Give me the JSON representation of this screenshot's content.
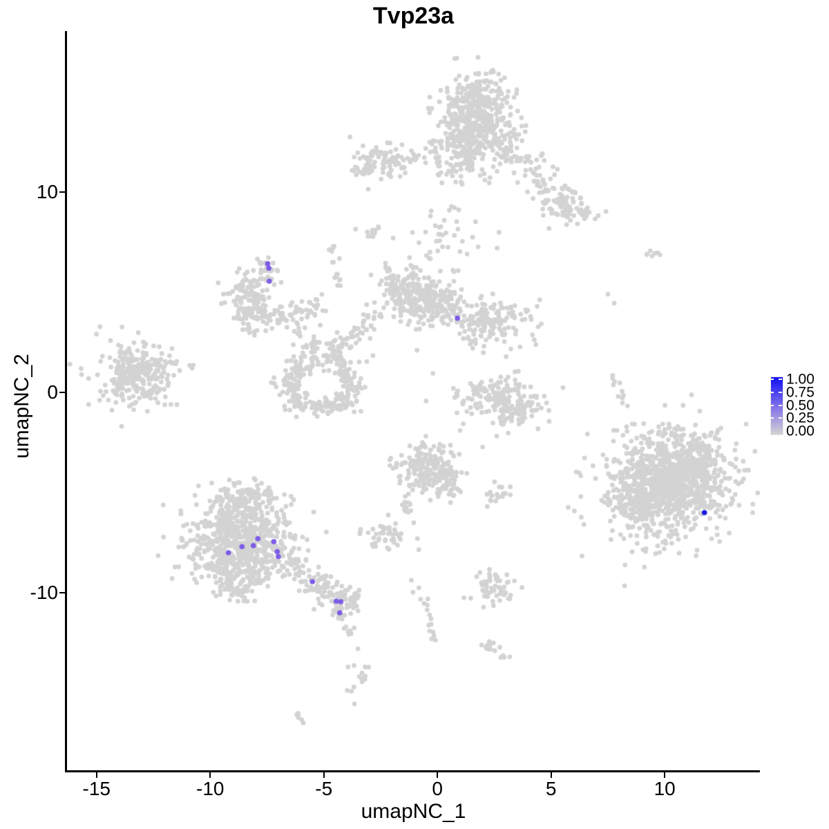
{
  "title": "Tvp23a",
  "axes": {
    "x": {
      "label": "umapNC_1",
      "ticks": [
        "-15",
        "-10",
        "-5",
        "0",
        "5",
        "10"
      ],
      "tick_values": [
        -15,
        -10,
        -5,
        0,
        5,
        10
      ]
    },
    "y": {
      "label": "umapNC_2",
      "ticks": [
        "10",
        "0",
        "-10"
      ],
      "tick_values": [
        10,
        0,
        -10
      ]
    }
  },
  "legend": {
    "labels": [
      "1.00",
      "0.75",
      "0.50",
      "0.25",
      "0.00"
    ],
    "label_values": [
      1.0,
      0.75,
      0.5,
      0.25,
      0.0
    ],
    "tick_values": [
      1.0,
      0.75,
      0.5,
      0.25
    ],
    "color_high": "#1010f5",
    "color_mid": "#8878e8",
    "color_low": "#d3d3d3"
  },
  "chart_data": {
    "type": "scatter",
    "title": "Tvp23a",
    "xlabel": "umapNC_1",
    "ylabel": "umapNC_2",
    "xlim": [
      -16.3,
      14.19
    ],
    "ylim": [
      -18.86,
      18.03
    ],
    "grid": false,
    "point_color": "#d3d3d3",
    "point_radius_px": 3.4,
    "expressing_point_radius_px": 3.8,
    "background_clusters": [
      {
        "t": "b",
        "x": 1.75,
        "y": 14.1,
        "sx": 0.75,
        "sy": 0.9,
        "n": 360
      },
      {
        "t": "b",
        "x": 1.55,
        "y": 12.5,
        "sx": 0.9,
        "sy": 0.6,
        "n": 170
      },
      {
        "t": "b",
        "x": 1.1,
        "y": 11.3,
        "sx": 0.55,
        "sy": 0.5,
        "n": 60
      },
      {
        "t": "l",
        "x1": 2.6,
        "y1": 12.9,
        "x2": 5.8,
        "y2": 9.1,
        "w": 0.5,
        "n": 115
      },
      {
        "t": "b",
        "x": 5.65,
        "y": 9.35,
        "sx": 0.4,
        "sy": 0.35,
        "n": 40
      },
      {
        "t": "l",
        "x1": 6.0,
        "y1": 9.2,
        "x2": 6.95,
        "y2": 8.7,
        "w": 0.25,
        "n": 18
      },
      {
        "t": "b",
        "x": 0.9,
        "y": 7.9,
        "sx": 0.95,
        "sy": 0.85,
        "n": 28
      },
      {
        "t": "l",
        "x1": 0.05,
        "y1": 8.3,
        "x2": -0.3,
        "y2": 6.6,
        "w": 0.15,
        "n": 12
      },
      {
        "t": "b",
        "x": -2.4,
        "y": 11.6,
        "sx": 0.62,
        "sy": 0.42,
        "n": 85
      },
      {
        "t": "b",
        "x": -3.3,
        "y": 11.15,
        "sx": 0.28,
        "sy": 0.28,
        "n": 15
      },
      {
        "t": "l",
        "x1": -1.35,
        "y1": 11.7,
        "x2": 0.15,
        "y2": 11.4,
        "w": 0.12,
        "n": 12
      },
      {
        "t": "l",
        "x1": -3.15,
        "y1": 7.5,
        "x2": -2.6,
        "y2": 8.3,
        "w": 0.1,
        "n": 10
      },
      {
        "t": "b",
        "x": -7.45,
        "y": 6.1,
        "sx": 0.2,
        "sy": 0.33,
        "n": 22
      },
      {
        "t": "b",
        "x": -8.35,
        "y": 4.9,
        "sx": 0.55,
        "sy": 0.72,
        "n": 125
      },
      {
        "t": "l",
        "x1": -8.35,
        "y1": 3.6,
        "x2": -6.1,
        "y2": 3.85,
        "w": 0.33,
        "n": 65
      },
      {
        "t": "l",
        "x1": -6.1,
        "y1": 3.95,
        "x2": -5.1,
        "y2": 4.55,
        "w": 0.28,
        "n": 22
      },
      {
        "t": "l",
        "x1": -4.68,
        "y1": 7.6,
        "x2": -4.35,
        "y2": 5.15,
        "w": 0.1,
        "n": 16
      },
      {
        "t": "b",
        "x": -1.25,
        "y": 4.95,
        "sx": 0.72,
        "sy": 0.68,
        "n": 195
      },
      {
        "t": "b",
        "x": -0.05,
        "y": 4.35,
        "sx": 0.6,
        "sy": 0.55,
        "n": 115
      },
      {
        "t": "b",
        "x": 2.0,
        "y": 3.6,
        "sx": 0.78,
        "sy": 0.58,
        "n": 145
      },
      {
        "t": "l",
        "x1": -2.2,
        "y1": 6.3,
        "x2": -2.0,
        "y2": 5.0,
        "w": 0.12,
        "n": 13
      },
      {
        "t": "b",
        "x": 3.9,
        "y": 3.0,
        "sx": 0.5,
        "sy": 0.75,
        "n": 22
      },
      {
        "t": "l",
        "x1": -6.4,
        "y1": 3.1,
        "x2": -4.4,
        "y2": 1.8,
        "w": 0.25,
        "n": 28
      },
      {
        "t": "l",
        "x1": -5.6,
        "y1": 1.2,
        "x2": -3.4,
        "y2": 3.1,
        "w": 0.25,
        "n": 28
      },
      {
        "t": "l",
        "x1": -3.9,
        "y1": 2.6,
        "x2": -2.6,
        "y2": 3.9,
        "w": 0.2,
        "n": 18
      },
      {
        "t": "b",
        "x": -4.6,
        "y": 2.2,
        "sx": 0.9,
        "sy": 0.7,
        "n": 22
      },
      {
        "t": "b",
        "x": -13.3,
        "y": 0.9,
        "sx": 0.72,
        "sy": 0.68,
        "n": 225
      },
      {
        "t": "b",
        "x": -13.2,
        "y": 0.95,
        "sx": 1.1,
        "sy": 1.0,
        "n": 48
      },
      {
        "t": "l",
        "x1": -12.2,
        "y1": 1.2,
        "x2": -10.95,
        "y2": 1.4,
        "w": 0.28,
        "n": 13
      },
      {
        "t": "a",
        "x": -5.15,
        "y": 0.45,
        "rx": 1.42,
        "ry": 1.18,
        "a1": 100,
        "a2": 430,
        "w": 0.26,
        "n": 185
      },
      {
        "t": "b",
        "x": -5.0,
        "y": -0.62,
        "sx": 0.8,
        "sy": 0.3,
        "n": 42
      },
      {
        "t": "b",
        "x": -6.3,
        "y": 0.3,
        "sx": 0.3,
        "sy": 0.6,
        "n": 26
      },
      {
        "t": "b",
        "x": -5.3,
        "y": 2.0,
        "sx": 0.7,
        "sy": 0.3,
        "n": 9
      },
      {
        "t": "b",
        "x": 2.6,
        "y": -0.3,
        "sx": 0.8,
        "sy": 0.55,
        "n": 115
      },
      {
        "t": "b",
        "x": 3.6,
        "y": -0.95,
        "sx": 0.6,
        "sy": 0.4,
        "n": 55
      },
      {
        "t": "b",
        "x": 2.9,
        "y": -0.5,
        "sx": 1.25,
        "sy": 0.85,
        "n": 38
      },
      {
        "t": "l",
        "x1": 7.7,
        "y1": 1.05,
        "x2": 8.25,
        "y2": -0.75,
        "w": 0.13,
        "n": 11
      },
      {
        "t": "l",
        "x1": 9.25,
        "y1": 6.85,
        "x2": 9.8,
        "y2": 6.78,
        "w": 0.09,
        "n": 7
      },
      {
        "t": "b",
        "x": -0.3,
        "y": -3.8,
        "sx": 0.68,
        "sy": 0.62,
        "n": 185
      },
      {
        "t": "b",
        "x": 0.35,
        "y": -4.6,
        "sx": 0.42,
        "sy": 0.42,
        "n": 40
      },
      {
        "t": "l",
        "x1": -1.5,
        "y1": -5.2,
        "x2": -1.05,
        "y2": -6.45,
        "w": 0.12,
        "n": 13
      },
      {
        "t": "l",
        "x1": -1.0,
        "y1": -9.4,
        "x2": -0.35,
        "y2": -11.2,
        "w": 0.12,
        "n": 10
      },
      {
        "t": "l",
        "x1": -0.3,
        "y1": -11.4,
        "x2": -0.08,
        "y2": -12.45,
        "w": 0.1,
        "n": 7
      },
      {
        "t": "b",
        "x": 2.15,
        "y": -12.6,
        "sx": 0.22,
        "sy": 0.2,
        "n": 8
      },
      {
        "t": "l",
        "x1": 2.3,
        "y1": -12.75,
        "x2": 2.9,
        "y2": -13.3,
        "w": 0.13,
        "n": 8
      },
      {
        "t": "b",
        "x": -2.4,
        "y": -7.05,
        "sx": 0.55,
        "sy": 0.42,
        "n": 42
      },
      {
        "t": "b",
        "x": 2.85,
        "y": -5.1,
        "sx": 0.32,
        "sy": 0.3,
        "n": 22
      },
      {
        "t": "b",
        "x": 2.5,
        "y": -9.85,
        "sx": 0.58,
        "sy": 0.32,
        "n": 52
      },
      {
        "t": "l",
        "x1": 1.9,
        "y1": -9.0,
        "x2": 3.05,
        "y2": -9.25,
        "w": 0.18,
        "n": 10
      },
      {
        "t": "b",
        "x": -8.55,
        "y": -5.3,
        "sx": 0.72,
        "sy": 0.45,
        "n": 105
      },
      {
        "t": "b",
        "x": -8.6,
        "y": -6.3,
        "sx": 0.95,
        "sy": 0.5,
        "n": 165
      },
      {
        "t": "b",
        "x": -8.7,
        "y": -7.3,
        "sx": 1.15,
        "sy": 0.55,
        "n": 225
      },
      {
        "t": "b",
        "x": -8.8,
        "y": -8.3,
        "sx": 1.05,
        "sy": 0.5,
        "n": 185
      },
      {
        "t": "b",
        "x": -8.85,
        "y": -9.2,
        "sx": 0.75,
        "sy": 0.4,
        "n": 85
      },
      {
        "t": "b",
        "x": -8.9,
        "y": -9.95,
        "sx": 0.5,
        "sy": 0.3,
        "n": 28
      },
      {
        "t": "b",
        "x": -8.6,
        "y": -7.3,
        "sx": 1.5,
        "sy": 1.6,
        "n": 55
      },
      {
        "t": "l",
        "x1": -6.9,
        "y1": -8.2,
        "x2": -4.6,
        "y2": -10.1,
        "w": 0.4,
        "n": 95
      },
      {
        "t": "b",
        "x": -4.2,
        "y": -10.35,
        "sx": 0.5,
        "sy": 0.4,
        "n": 58
      },
      {
        "t": "l",
        "x1": -4.35,
        "y1": -10.9,
        "x2": -4.2,
        "y2": -11.3,
        "w": 0.1,
        "n": 8
      },
      {
        "t": "l",
        "x1": -3.95,
        "y1": -11.5,
        "x2": -3.75,
        "y2": -13.1,
        "w": 0.1,
        "n": 10
      },
      {
        "t": "b",
        "x": -3.55,
        "y": -14.3,
        "sx": 0.28,
        "sy": 0.5,
        "n": 14
      },
      {
        "t": "l",
        "x1": -6.15,
        "y1": -16.05,
        "x2": -5.8,
        "y2": -16.5,
        "w": 0.08,
        "n": 7
      },
      {
        "t": "b",
        "x": 10.1,
        "y": -4.5,
        "sx": 1.3,
        "sy": 1.25,
        "n": 780
      },
      {
        "t": "b",
        "x": 9.0,
        "y": -5.3,
        "sx": 0.7,
        "sy": 0.7,
        "n": 150
      },
      {
        "t": "b",
        "x": 11.3,
        "y": -3.6,
        "sx": 0.7,
        "sy": 0.65,
        "n": 145
      },
      {
        "t": "b",
        "x": 10.2,
        "y": -4.6,
        "sx": 1.7,
        "sy": 1.6,
        "n": 150
      },
      {
        "t": "l",
        "x1": 9.5,
        "y1": -1.95,
        "x2": 10.4,
        "y2": -2.1,
        "w": 0.2,
        "n": 13
      }
    ],
    "extra_gray_points": [
      [
        -15.35,
        -0.6
      ],
      [
        -11.6,
        0.85
      ],
      [
        -10.9,
        1.35
      ],
      [
        -3.6,
        8.15
      ],
      [
        -1.95,
        7.7
      ],
      [
        -0.9,
        2.1
      ],
      [
        -0.2,
        0.95
      ],
      [
        0.7,
        0.2
      ],
      [
        7.9,
        -1.9
      ],
      [
        7.5,
        4.9
      ],
      [
        7.78,
        4.45
      ],
      [
        -0.88,
        -7.3
      ],
      [
        -0.82,
        -7.85
      ],
      [
        8.2,
        -7.3
      ],
      [
        9.05,
        -7.85
      ],
      [
        9.6,
        -8.05
      ],
      [
        7.7,
        -6.9
      ]
    ],
    "expressing_points": [
      {
        "x": -7.47,
        "y": 6.42,
        "value": 0.5,
        "color": "#7d5ce6"
      },
      {
        "x": -7.42,
        "y": 6.2,
        "value": 0.5,
        "color": "#7d5ce6"
      },
      {
        "x": -7.4,
        "y": 5.55,
        "value": 0.5,
        "color": "#7d5ce6"
      },
      {
        "x": 0.88,
        "y": 3.7,
        "value": 0.5,
        "color": "#7d5ce6"
      },
      {
        "x": -7.9,
        "y": -7.3,
        "value": 0.5,
        "color": "#7d5ce6"
      },
      {
        "x": -7.2,
        "y": -7.45,
        "value": 0.5,
        "color": "#7d5ce6"
      },
      {
        "x": -8.6,
        "y": -7.7,
        "value": 0.5,
        "color": "#7d5ce6"
      },
      {
        "x": -8.1,
        "y": -7.65,
        "value": 0.5,
        "color": "#7d5ce6"
      },
      {
        "x": -9.2,
        "y": -8.0,
        "value": 0.5,
        "color": "#7d5ce6"
      },
      {
        "x": -7.05,
        "y": -7.95,
        "value": 0.5,
        "color": "#7d5ce6"
      },
      {
        "x": -7.0,
        "y": -8.2,
        "value": 0.5,
        "color": "#7d5ce6"
      },
      {
        "x": -5.5,
        "y": -9.45,
        "value": 0.5,
        "color": "#7d5ce6"
      },
      {
        "x": -4.45,
        "y": -10.42,
        "value": 0.5,
        "color": "#7d5ce6"
      },
      {
        "x": -4.25,
        "y": -10.45,
        "value": 0.5,
        "color": "#7d5ce6"
      },
      {
        "x": -4.3,
        "y": -11.0,
        "value": 0.5,
        "color": "#7d5ce6"
      },
      {
        "x": 11.75,
        "y": -6.0,
        "value": 0.95,
        "color": "#1b1be0"
      }
    ]
  }
}
